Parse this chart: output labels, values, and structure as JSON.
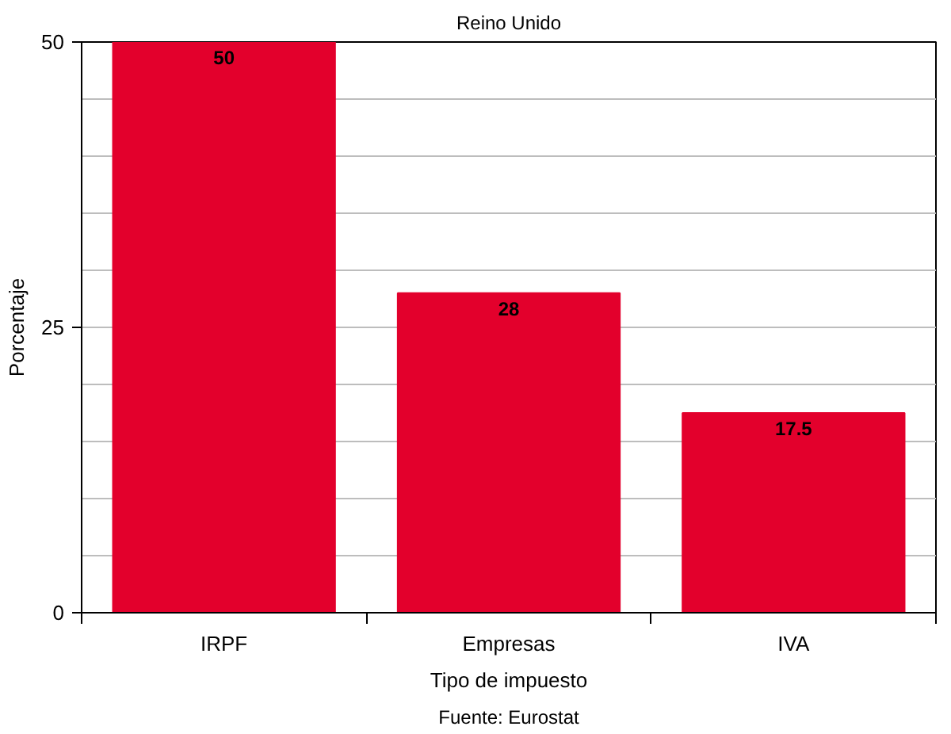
{
  "chart_data": {
    "type": "bar",
    "title": "Reino Unido",
    "xlabel": "Tipo de impuesto",
    "ylabel": "Porcentaje",
    "annotations": [
      "Fuente: Eurostat"
    ],
    "categories": [
      "IRPF",
      "Empresas",
      "IVA"
    ],
    "values": [
      50,
      28,
      17.5
    ],
    "color": "#e3002c",
    "ylim": [
      0,
      50
    ],
    "yticks": [
      0,
      {
        "value": 5,
        "label": null
      },
      {
        "value": 10,
        "label": null
      },
      {
        "value": 15,
        "label": null
      },
      {
        "value": 20,
        "label": null
      },
      25,
      {
        "value": 30,
        "label": null
      },
      {
        "value": 35,
        "label": null
      },
      {
        "value": 40,
        "label": null
      },
      {
        "value": 45,
        "label": null
      },
      50
    ],
    "grid": "y",
    "data_labels": true
  }
}
